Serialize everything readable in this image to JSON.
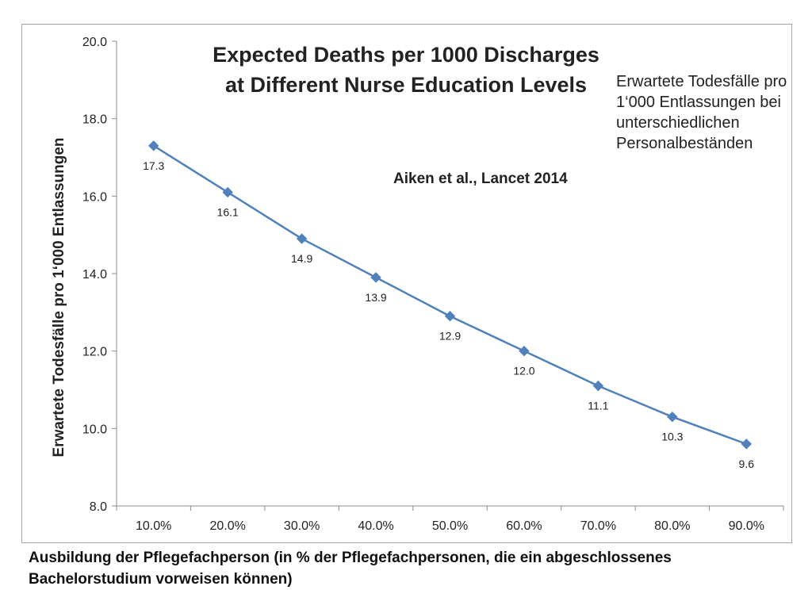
{
  "chart_data": {
    "type": "line",
    "title_lines": [
      "Expected Deaths per 1000 Discharges",
      "at Different Nurse Education Levels"
    ],
    "annotation_german": "Erwartete Todesfälle pro 1‘000 Entlassungen bei unterschiedlichen Personalbeständen",
    "source": "Aiken et al., Lancet 2014",
    "ylabel": "Erwartete Todesfälle pro 1‘000 Entlassungen",
    "xlabel": "Ausbildung der Pflegefachperson (in % der Pflegefachpersonen, die ein abgeschlossenes Bachelorstudium vorweisen können)",
    "categories": [
      "10.0%",
      "20.0%",
      "30.0%",
      "40.0%",
      "50.0%",
      "60.0%",
      "70.0%",
      "80.0%",
      "90.0%"
    ],
    "x": [
      10,
      20,
      30,
      40,
      50,
      60,
      70,
      80,
      90
    ],
    "values": [
      17.3,
      16.1,
      14.9,
      13.9,
      12.9,
      12.0,
      11.1,
      10.3,
      9.6
    ],
    "data_labels": [
      "17.3",
      "16.1",
      "14.9",
      "13.9",
      "12.9",
      "12.0",
      "11.1",
      "10.3",
      "9.6"
    ],
    "ylim": [
      8.0,
      20.0
    ],
    "yticks": [
      8.0,
      10.0,
      12.0,
      14.0,
      16.0,
      18.0,
      20.0
    ],
    "ytick_labels": [
      "8.0",
      "10.0",
      "12.0",
      "14.0",
      "16.0",
      "18.0",
      "20.0"
    ],
    "grid": false,
    "legend": "none",
    "line_color": "#4f81bd",
    "marker": "diamond"
  }
}
